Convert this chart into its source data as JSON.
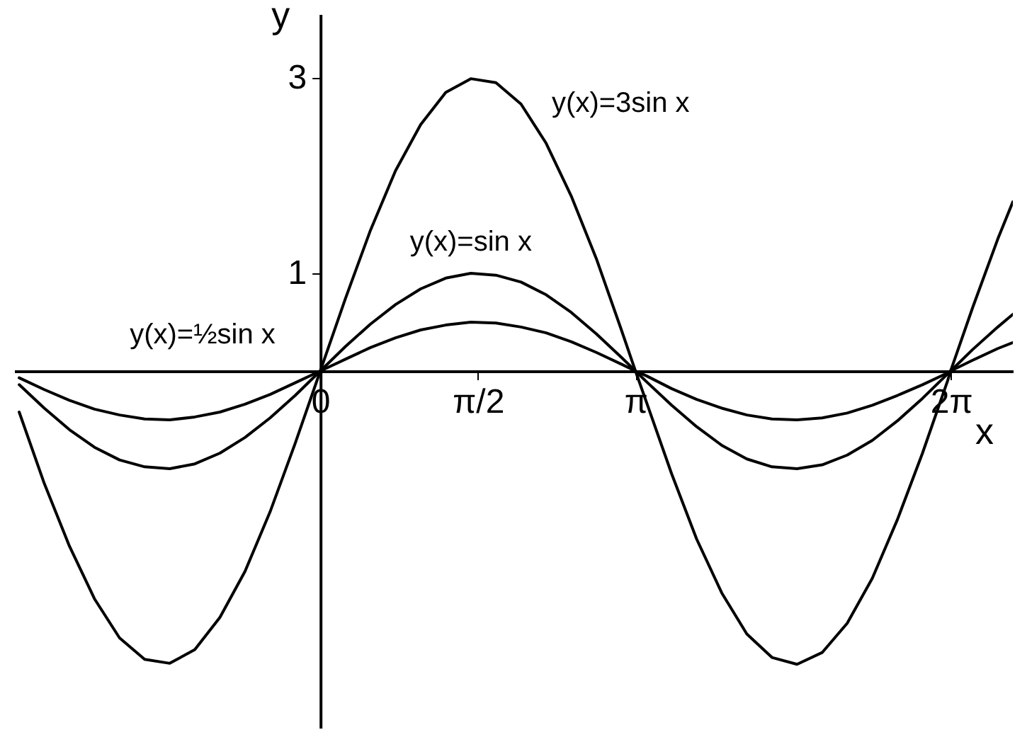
{
  "chart_data": {
    "type": "line",
    "xlabel": "x",
    "ylabel": "y",
    "x": [
      -3,
      -2.75,
      -2.5,
      -2.25,
      -2,
      -1.75,
      -1.5,
      -1.25,
      -1,
      -0.75,
      -0.5,
      -0.25,
      0,
      0.25,
      0.5,
      0.75,
      1,
      1.25,
      1.5,
      1.75,
      2,
      2.25,
      2.5,
      2.75,
      3,
      3.14,
      3.25,
      3.5,
      3.75,
      4,
      4.25,
      4.5,
      4.75,
      5,
      5.25,
      5.5,
      5.75,
      6,
      6.25,
      6.28,
      6.5,
      6.75,
      6.9
    ],
    "series": [
      {
        "name": "y(x)=3sin x",
        "color": "#000000",
        "values": [
          -0.42,
          -1.15,
          -1.79,
          -2.33,
          -2.73,
          -2.95,
          -2.99,
          -2.85,
          -2.52,
          -2.05,
          -1.44,
          -0.74,
          0,
          0.74,
          1.44,
          2.05,
          2.52,
          2.85,
          2.99,
          2.95,
          2.73,
          2.33,
          1.79,
          1.15,
          0.42,
          0,
          -0.32,
          -1.05,
          -1.72,
          -2.27,
          -2.69,
          -2.93,
          -3,
          -2.88,
          -2.58,
          -2.12,
          -1.52,
          -0.84,
          -0.1,
          0,
          0.65,
          1.35,
          1.73
        ]
      },
      {
        "name": "y(x)=sin x",
        "color": "#000000",
        "values": [
          -0.14,
          -0.38,
          -0.6,
          -0.78,
          -0.91,
          -0.98,
          -1,
          -0.95,
          -0.84,
          -0.68,
          -0.48,
          -0.25,
          0,
          0.25,
          0.48,
          0.68,
          0.84,
          0.95,
          1,
          0.98,
          0.91,
          0.78,
          0.6,
          0.38,
          0.14,
          0,
          -0.11,
          -0.35,
          -0.57,
          -0.76,
          -0.9,
          -0.98,
          -1,
          -0.96,
          -0.86,
          -0.71,
          -0.51,
          -0.28,
          -0.03,
          0,
          0.22,
          0.45,
          0.58
        ]
      },
      {
        "name": "y(x)=½sin x",
        "color": "#000000",
        "values": [
          -0.07,
          -0.19,
          -0.3,
          -0.39,
          -0.45,
          -0.49,
          -0.5,
          -0.47,
          -0.42,
          -0.34,
          -0.24,
          -0.12,
          0,
          0.12,
          0.24,
          0.34,
          0.42,
          0.47,
          0.5,
          0.49,
          0.45,
          0.39,
          0.3,
          0.19,
          0.07,
          0,
          -0.05,
          -0.18,
          -0.29,
          -0.38,
          -0.45,
          -0.49,
          -0.5,
          -0.48,
          -0.43,
          -0.35,
          -0.25,
          -0.14,
          -0.02,
          0,
          0.11,
          0.23,
          0.29
        ]
      }
    ],
    "xlim": [
      -3.05,
      6.9
    ],
    "ylim": [
      -3.65,
      3.65
    ],
    "xticks": [
      0,
      {
        "value": 1.5708,
        "label": "π/2"
      },
      {
        "value": 3.1416,
        "label": "π"
      },
      {
        "value": 6.2832,
        "label": "2π"
      }
    ],
    "yticks": [
      1,
      3
    ],
    "grid": false,
    "legend": false,
    "marker": "none",
    "line_style": "solid"
  }
}
